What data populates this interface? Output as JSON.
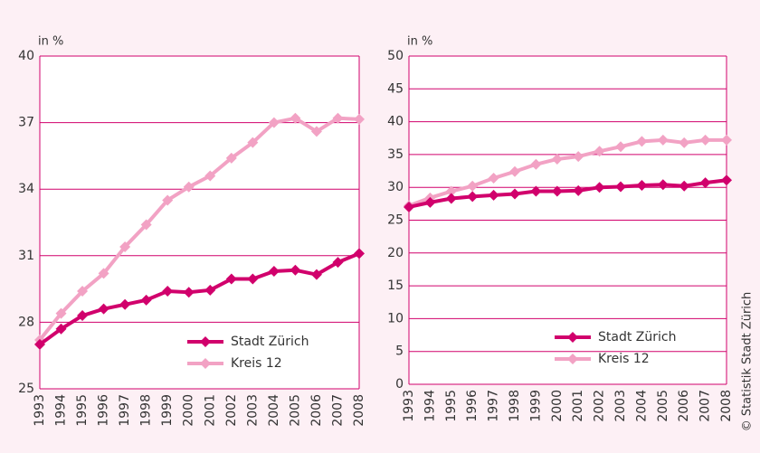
{
  "chart_data": [
    {
      "type": "line",
      "ylabel": "in %",
      "categories": [
        "1993",
        "1994",
        "1995",
        "1996",
        "1997",
        "1998",
        "1999",
        "2000",
        "2001",
        "2002",
        "2003",
        "2004",
        "2005",
        "2006",
        "2007",
        "2008"
      ],
      "series": [
        {
          "name": "Stadt Zürich",
          "color": "#d1006c",
          "values": [
            27.0,
            27.7,
            28.3,
            28.6,
            28.8,
            29.0,
            29.4,
            29.35,
            29.45,
            29.95,
            29.95,
            30.3,
            30.35,
            30.15,
            30.7,
            31.1
          ]
        },
        {
          "name": "Kreis 12",
          "color": "#f2a2c4",
          "values": [
            27.2,
            28.4,
            29.4,
            30.2,
            31.4,
            32.4,
            33.5,
            34.1,
            34.6,
            35.4,
            36.1,
            37.0,
            37.2,
            36.6,
            37.2,
            37.15
          ]
        }
      ],
      "ylim": [
        25,
        40
      ],
      "yticks": [
        25,
        28,
        31,
        34,
        37,
        40
      ],
      "grid": true,
      "legend": "lower right"
    },
    {
      "type": "line",
      "ylabel": "in %",
      "categories": [
        "1993",
        "1994",
        "1995",
        "1996",
        "1997",
        "1998",
        "1999",
        "2000",
        "2001",
        "2002",
        "2003",
        "2004",
        "2005",
        "2006",
        "2007",
        "2008"
      ],
      "series": [
        {
          "name": "Stadt Zürich",
          "color": "#d1006c",
          "values": [
            27.0,
            27.7,
            28.3,
            28.6,
            28.8,
            29.0,
            29.4,
            29.4,
            29.5,
            30.0,
            30.1,
            30.3,
            30.4,
            30.2,
            30.7,
            31.1
          ]
        },
        {
          "name": "Kreis 12",
          "color": "#f2a2c4",
          "values": [
            27.2,
            28.4,
            29.4,
            30.2,
            31.4,
            32.4,
            33.5,
            34.3,
            34.7,
            35.5,
            36.2,
            37.0,
            37.2,
            36.8,
            37.2,
            37.2
          ]
        }
      ],
      "ylim": [
        0,
        50
      ],
      "yticks": [
        0,
        5,
        10,
        15,
        20,
        25,
        30,
        35,
        40,
        45,
        50
      ],
      "grid": true,
      "legend": "lower right"
    }
  ],
  "credit": "© Statistik Stadt Zürich"
}
